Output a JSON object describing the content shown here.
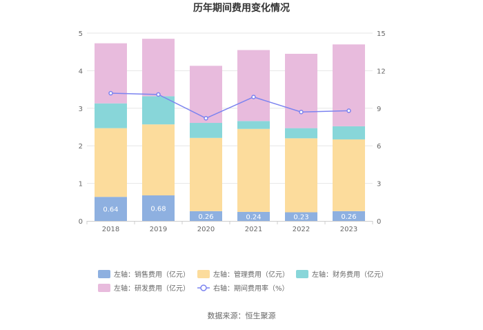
{
  "chart_data": {
    "type": "bar",
    "stacked": true,
    "title": "历年期间费用变化情况",
    "categories": [
      "2018",
      "2019",
      "2020",
      "2021",
      "2022",
      "2023"
    ],
    "series": [
      {
        "name": "左轴：销售费用（亿元）",
        "axis": "left",
        "color": "#8eb0e0",
        "values": [
          0.64,
          0.68,
          0.26,
          0.24,
          0.23,
          0.26
        ],
        "labels": [
          "0.64",
          "0.68",
          "0.26",
          "0.24",
          "0.23",
          "0.26"
        ]
      },
      {
        "name": "左轴：管理费用（亿元）",
        "axis": "left",
        "color": "#fcdc9c",
        "values": [
          1.83,
          1.89,
          1.95,
          2.21,
          1.97,
          1.91
        ]
      },
      {
        "name": "左轴：财务费用（亿元）",
        "axis": "left",
        "color": "#88d6d9",
        "values": [
          0.66,
          0.75,
          0.4,
          0.21,
          0.27,
          0.35
        ]
      },
      {
        "name": "左轴：研发费用（亿元）",
        "axis": "left",
        "color": "#e8bbdd",
        "values": [
          1.6,
          1.53,
          1.52,
          1.89,
          1.98,
          2.18
        ]
      },
      {
        "name": "右轴：期间费用率（%）",
        "axis": "right",
        "type": "line",
        "color": "#7b83f0",
        "values": [
          10.2,
          10.1,
          8.2,
          9.9,
          8.7,
          8.8
        ]
      }
    ],
    "y_left": {
      "min": 0,
      "max": 5,
      "ticks": [
        "0",
        "1",
        "2",
        "3",
        "4",
        "5"
      ]
    },
    "y_right": {
      "min": 0,
      "max": 15,
      "ticks": [
        "0",
        "3",
        "6",
        "9",
        "12",
        "15"
      ]
    },
    "legend_position": "bottom",
    "source": "数据来源：恒生聚源"
  }
}
